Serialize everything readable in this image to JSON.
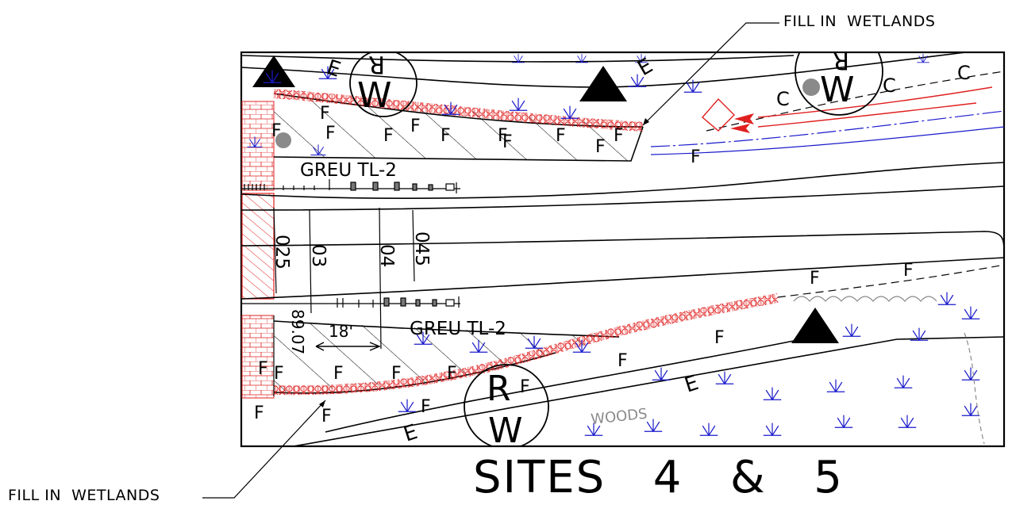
{
  "callouts": {
    "top": "FILL IN  WETLANDS",
    "bottom": "FILL IN  WETLANDS"
  },
  "title": "SITES  4  &  5",
  "labels": {
    "guardrail_top": "GREU  TL-2",
    "guardrail_bottom": "GREU  TL-2",
    "woods": "WOODS",
    "dim_18": "18'",
    "dim_89": "89.07",
    "station_025": "025",
    "station_03": "03",
    "station_04": "04",
    "station_045": "045",
    "row_r": "R",
    "row_w": "W",
    "fill_letter": "F",
    "edge_letter": "E",
    "clear_letter": "C"
  },
  "colors": {
    "line": "#000000",
    "wetland": "#1a1acc",
    "fill_hatch": "#e02020",
    "grey": "#8a8a8a"
  },
  "icons": [
    "triangle-marker-icon",
    "wetland-symbol-icon",
    "arrow-icon"
  ]
}
